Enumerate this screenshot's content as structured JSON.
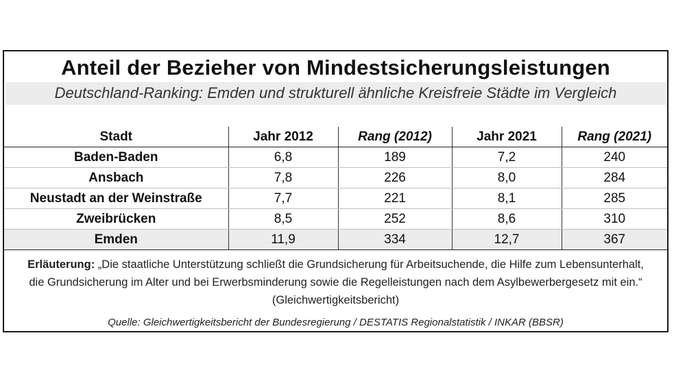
{
  "chart_data": {
    "type": "table",
    "title": "Anteil der Bezieher von Mindestsicherungsleistungen",
    "subtitle": "Deutschland-Ranking: Emden und strukturell ähnliche Kreisfreie Städte im Vergleich",
    "columns": [
      "Stadt",
      "Jahr 2012",
      "Rang (2012)",
      "Jahr 2021",
      "Rang (2021)"
    ],
    "rows": [
      [
        "Baden-Baden",
        "6,8",
        "189",
        "7,2",
        "240"
      ],
      [
        "Ansbach",
        "7,8",
        "226",
        "8,0",
        "284"
      ],
      [
        "Neustadt an der Weinstraße",
        "7,7",
        "221",
        "8,1",
        "285"
      ],
      [
        "Zweibrücken",
        "8,5",
        "252",
        "8,6",
        "310"
      ],
      [
        "Emden",
        "11,9",
        "334",
        "12,7",
        "367"
      ]
    ],
    "highlight_row": "Emden",
    "note_label": "Erläuterung:",
    "note_text": "„Die staatliche Unterstützung schließt die Grundsicherung für Arbeitsuchende, die Hilfe zum Lebensunterhalt, die Grundsicherung im Alter und bei Erwerbsminderung sowie die Regelleistungen nach dem Asylbewerbergesetz mit ein.“ (Gleichwertigkeitsbericht)",
    "source": "Quelle: Gleichwertigkeitsbericht der Bundesregierung / DESTATIS Regionalstatistik / INKAR (BBSR)"
  },
  "colors": {
    "highlight_bg": "#ececec",
    "subtitle_band": "#ececec",
    "border": "#1a1a1a"
  }
}
